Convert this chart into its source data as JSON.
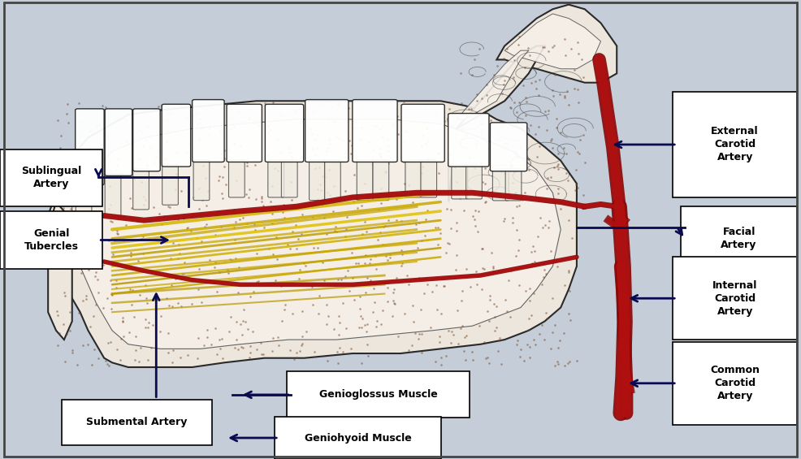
{
  "bg_color": "#c4cdd8",
  "fig_width": 9.86,
  "fig_height": 5.65,
  "dpi": 100,
  "border_color": "#555555",
  "bone_fill": "#e8ddd0",
  "bone_edge": "#2a2a2a",
  "dot_color": "#7a4a2a",
  "artery_dark": "#8b0808",
  "artery_light": "#b01010",
  "muscle_color": "#c8a800",
  "muscle_color2": "#d4b200",
  "label_arrow_color": "#0a0a50",
  "label_fontsize": 9,
  "label_fontweight": "bold",
  "labels": {
    "external_carotid": {
      "text": "External\nCarotid\nArtery",
      "bx": 0.845,
      "by": 0.575,
      "bw": 0.145,
      "bh": 0.22
    },
    "facial": {
      "text": "Facial\nArtery",
      "bx": 0.855,
      "by": 0.415,
      "bw": 0.135,
      "bh": 0.13
    },
    "internal_carotid": {
      "text": "Internal\nCarotid\nArtery",
      "bx": 0.845,
      "by": 0.265,
      "bw": 0.145,
      "bh": 0.17
    },
    "common_carotid": {
      "text": "Common\nCarotid\nArtery",
      "bx": 0.845,
      "by": 0.08,
      "bw": 0.145,
      "bh": 0.17
    },
    "sublingual": {
      "text": "Sublingual\nArtery",
      "bx": 0.005,
      "by": 0.555,
      "bw": 0.118,
      "bh": 0.115
    },
    "genial": {
      "text": "Genial\nTubercles",
      "bx": 0.005,
      "by": 0.42,
      "bw": 0.118,
      "bh": 0.115
    },
    "submental": {
      "text": "Submental Artery",
      "bx": 0.082,
      "by": 0.035,
      "bw": 0.178,
      "bh": 0.09
    },
    "genioglossus": {
      "text": "Genioglossus Muscle",
      "bx": 0.363,
      "by": 0.095,
      "bw": 0.218,
      "bh": 0.092
    },
    "geniohyoid": {
      "text": "Geniohyoid Muscle",
      "bx": 0.348,
      "by": 0.005,
      "bw": 0.198,
      "bh": 0.082
    }
  }
}
